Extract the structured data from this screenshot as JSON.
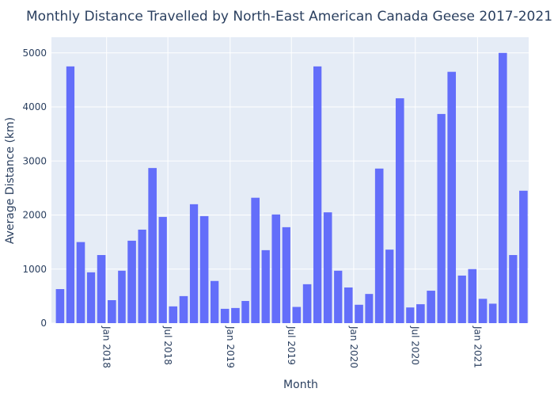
{
  "chart_data": {
    "type": "bar",
    "title": "Monthly Distance Travelled by North-East American Canada Geese 2017-2021",
    "x_label": "Month",
    "y_label": "Average Distance (km)",
    "x": [
      "2017-08",
      "2017-09",
      "2017-10",
      "2017-11",
      "2017-12",
      "2018-01",
      "2018-02",
      "2018-03",
      "2018-04",
      "2018-05",
      "2018-06",
      "2018-07",
      "2018-08",
      "2018-09",
      "2018-10",
      "2018-11",
      "2018-12",
      "2019-01",
      "2019-02",
      "2019-03",
      "2019-04",
      "2019-05",
      "2019-06",
      "2019-07",
      "2019-08",
      "2019-09",
      "2019-10",
      "2019-11",
      "2019-12",
      "2020-01",
      "2020-02",
      "2020-03",
      "2020-04",
      "2020-05",
      "2020-06",
      "2020-07",
      "2020-08",
      "2020-09",
      "2020-10",
      "2020-11",
      "2020-12",
      "2021-01",
      "2021-02",
      "2021-03",
      "2021-04",
      "2021-05"
    ],
    "values": [
      630,
      4750,
      1500,
      940,
      1260,
      425,
      970,
      1525,
      1730,
      2870,
      1965,
      310,
      500,
      2200,
      1980,
      780,
      265,
      280,
      410,
      2320,
      1350,
      2010,
      1775,
      300,
      720,
      4750,
      2050,
      970,
      660,
      340,
      540,
      2860,
      1360,
      4160,
      290,
      350,
      600,
      3870,
      4650,
      880,
      1000,
      450,
      360,
      5000,
      1260,
      2450
    ],
    "color": "#636efa",
    "xlim": [
      "2017-07-22",
      "2021-06-01"
    ],
    "xticks": [
      {
        "value": "2018-01",
        "label": "Jan 2018"
      },
      {
        "value": "2018-07",
        "label": "Jul 2018"
      },
      {
        "value": "2019-01",
        "label": "Jan 2019"
      },
      {
        "value": "2019-07",
        "label": "Jul 2019"
      },
      {
        "value": "2020-01",
        "label": "Jan 2020"
      },
      {
        "value": "2020-07",
        "label": "Jul 2020"
      },
      {
        "value": "2021-01",
        "label": "Jan 2021"
      }
    ],
    "ylim": [
      0,
      5290
    ],
    "yticks": [
      0,
      1000,
      2000,
      3000,
      4000,
      5000
    ],
    "grid": true
  }
}
